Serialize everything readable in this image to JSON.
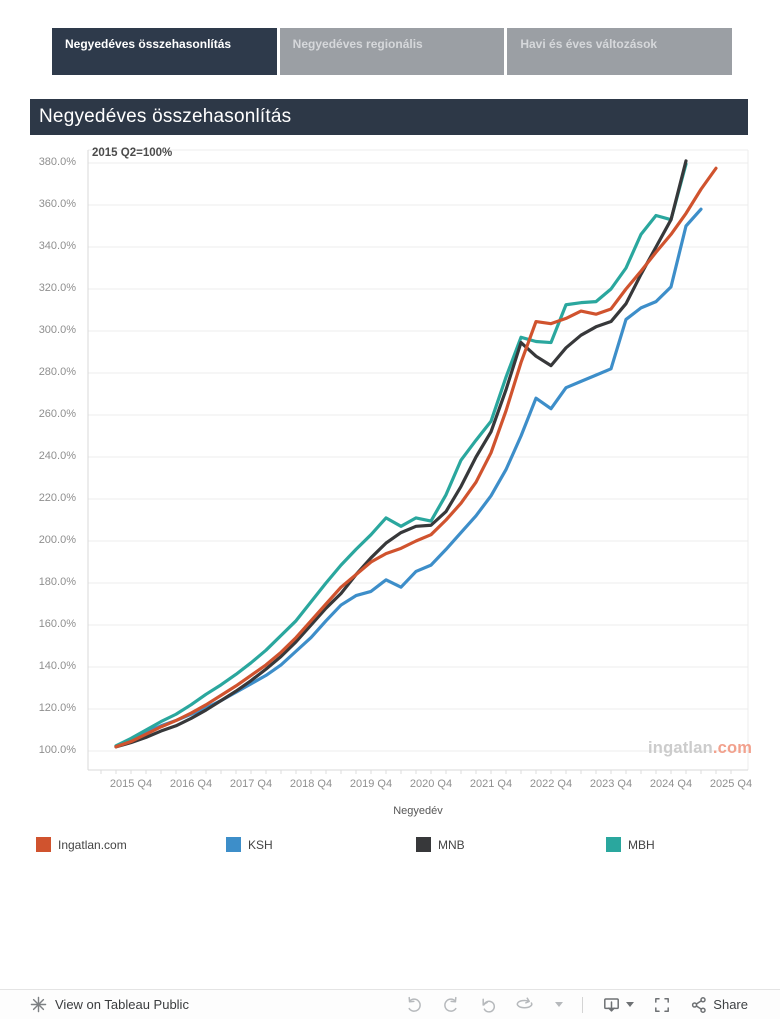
{
  "tabs": [
    {
      "label": "Negyedéves összehasonlítás",
      "active": true
    },
    {
      "label": "Negyedéves regionális",
      "active": false
    },
    {
      "label": "Havi és éves változások",
      "active": false
    }
  ],
  "title": "Negyedéves összehasonlítás",
  "watermark": {
    "text_gray": "ingatlan",
    "text_orange": ".com"
  },
  "footer": {
    "view_label": "View on Tableau Public",
    "share_label": "Share"
  },
  "chart_data": {
    "type": "line",
    "annotation": "2015 Q2=100%",
    "xlabel": "Negyedév",
    "grid": true,
    "legend_position": "bottom",
    "ylim": [
      90,
      386
    ],
    "y_ticks": [
      100,
      120,
      140,
      160,
      180,
      200,
      220,
      240,
      260,
      280,
      300,
      320,
      340,
      360,
      380
    ],
    "y_tick_labels": [
      "100.0%",
      "120.0%",
      "140.0%",
      "160.0%",
      "180.0%",
      "200.0%",
      "220.0%",
      "240.0%",
      "260.0%",
      "280.0%",
      "300.0%",
      "320.0%",
      "340.0%",
      "360.0%",
      "380.0%"
    ],
    "x_tick_labels": [
      "2015 Q4",
      "2016 Q4",
      "2017 Q4",
      "2018 Q4",
      "2019 Q4",
      "2020 Q4",
      "2021 Q4",
      "2022 Q4",
      "2023 Q4",
      "2024 Q4",
      "2025 Q4"
    ],
    "x_quarters": [
      "2015 Q3",
      "2015 Q4",
      "2016 Q1",
      "2016 Q2",
      "2016 Q3",
      "2016 Q4",
      "2017 Q1",
      "2017 Q2",
      "2017 Q3",
      "2017 Q4",
      "2018 Q1",
      "2018 Q2",
      "2018 Q3",
      "2018 Q4",
      "2019 Q1",
      "2019 Q2",
      "2019 Q3",
      "2019 Q4",
      "2020 Q1",
      "2020 Q2",
      "2020 Q3",
      "2020 Q4",
      "2021 Q1",
      "2021 Q2",
      "2021 Q3",
      "2021 Q4",
      "2022 Q1",
      "2022 Q2",
      "2022 Q3",
      "2022 Q4",
      "2023 Q1",
      "2023 Q2",
      "2023 Q3",
      "2023 Q4",
      "2024 Q1",
      "2024 Q2",
      "2024 Q3",
      "2024 Q4",
      "2025 Q1",
      "2025 Q2",
      "2025 Q3"
    ],
    "series": [
      {
        "name": "Ingatlan.com",
        "color": "#d0532e",
        "values": [
          102,
          104.5,
          108,
          111.5,
          114.5,
          118,
          122,
          126.5,
          131,
          136,
          141,
          147,
          154,
          162,
          170,
          178,
          184,
          190,
          194,
          196.5,
          200,
          203,
          210,
          218,
          228,
          242,
          262,
          285,
          304.5,
          303.5,
          306,
          309.5,
          308,
          310.5,
          320,
          328.5,
          337.5,
          346,
          356,
          367.5,
          377.5
        ]
      },
      {
        "name": "KSH",
        "color": "#3d8ec9",
        "values": [
          102,
          105,
          109,
          112,
          114.5,
          117.5,
          120.5,
          124,
          128,
          132,
          136,
          141,
          147.5,
          154,
          162,
          169.5,
          174,
          176,
          181.5,
          178,
          185.5,
          188.5,
          196,
          204,
          212,
          221.5,
          234,
          250,
          268,
          263,
          273,
          276,
          279,
          282,
          305.5,
          311,
          314,
          321,
          350,
          358
        ]
      },
      {
        "name": "MNB",
        "color": "#37383a",
        "values": [
          102,
          104,
          106.5,
          109.5,
          112,
          115.5,
          119.5,
          124,
          128.5,
          133.5,
          139,
          145,
          152,
          160,
          168,
          175,
          184,
          192,
          199,
          204,
          207,
          207.5,
          214,
          226,
          240,
          252,
          272,
          294.5,
          288,
          283.5,
          292,
          298,
          302,
          304.5,
          313,
          327,
          340,
          353,
          381
        ]
      },
      {
        "name": "MBH",
        "color": "#2aa79e",
        "values": [
          102.5,
          106,
          110,
          114,
          117.5,
          122,
          127,
          131.5,
          136.5,
          142,
          148,
          155,
          162,
          171,
          180,
          188.5,
          196,
          203,
          211,
          207,
          211,
          209.5,
          222,
          238.5,
          248,
          257,
          278,
          297,
          295,
          294.5,
          312.5,
          313.5,
          314,
          320,
          330,
          346,
          355,
          353,
          379.5
        ]
      }
    ]
  }
}
